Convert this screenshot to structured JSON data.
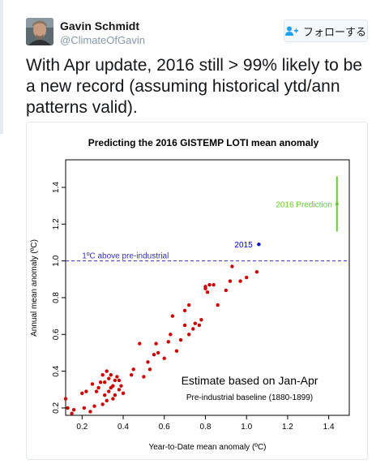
{
  "tweet": {
    "author_name": "Gavin Schmidt",
    "author_handle": "@ClimateOfGavin",
    "follow_label": "フォローする",
    "text": "With Apr update, 2016 still > 99% likely to be a new record (assuming historical ytd/ann patterns valid)."
  },
  "icons": {
    "avatar": "user-photo",
    "follow": "follow-user-icon"
  },
  "colors": {
    "points": "#cc0000",
    "reference_line": "#3333bb",
    "prediction": "#66cc33",
    "point_2015": "#0000cc"
  },
  "chart_data": {
    "type": "scatter",
    "title": "Predicting the 2016 GISTEMP LOTI mean anomaly",
    "xlabel": "Year-to-Date mean anomaly (ºC)",
    "ylabel": "Annual mean anomaly (ºC)",
    "xlim": [
      0.12,
      1.5
    ],
    "ylim": [
      0.16,
      1.55
    ],
    "xticks": [
      "0.2",
      "0.4",
      "0.6",
      "0.8",
      "1.0",
      "1.2",
      "1.4"
    ],
    "yticks": [
      "0.2",
      "0.4",
      "0.6",
      "0.8",
      "1.0",
      "1.2",
      "1.4"
    ],
    "reference_line": {
      "y": 1.0,
      "label": "1ºC above pre-industrial"
    },
    "annotations": {
      "estimate": "Estimate based on Jan-Apr",
      "baseline": "Pre-industrial baseline (1880-1899)",
      "label_2015": "2015",
      "label_2016": "2016 Prediction"
    },
    "series": [
      {
        "x": [
          0.12,
          0.13,
          0.15,
          0.16,
          0.2,
          0.21,
          0.22,
          0.24,
          0.25,
          0.26,
          0.27,
          0.28,
          0.29,
          0.3,
          0.3,
          0.31,
          0.31,
          0.32,
          0.32,
          0.33,
          0.33,
          0.34,
          0.34,
          0.35,
          0.35,
          0.36,
          0.36,
          0.37,
          0.38,
          0.38,
          0.39,
          0.4,
          0.44,
          0.45,
          0.48,
          0.5,
          0.52,
          0.53,
          0.55,
          0.56,
          0.57,
          0.6,
          0.62,
          0.63,
          0.64,
          0.66,
          0.68,
          0.7,
          0.7,
          0.72,
          0.72,
          0.74,
          0.75,
          0.77,
          0.78,
          0.8,
          0.8,
          0.81,
          0.82,
          0.84,
          0.86,
          0.9,
          0.92,
          0.93,
          0.97,
          1.0,
          1.05
        ],
        "y": [
          0.25,
          0.2,
          0.17,
          0.19,
          0.28,
          0.2,
          0.29,
          0.18,
          0.33,
          0.21,
          0.29,
          0.31,
          0.34,
          0.22,
          0.38,
          0.27,
          0.34,
          0.24,
          0.4,
          0.29,
          0.36,
          0.31,
          0.38,
          0.25,
          0.32,
          0.27,
          0.35,
          0.37,
          0.3,
          0.35,
          0.32,
          0.28,
          0.38,
          0.41,
          0.55,
          0.37,
          0.45,
          0.41,
          0.49,
          0.55,
          0.5,
          0.47,
          0.56,
          0.6,
          0.7,
          0.51,
          0.57,
          0.65,
          0.73,
          0.6,
          0.76,
          0.63,
          0.66,
          0.65,
          0.68,
          0.86,
          0.85,
          0.83,
          0.87,
          0.87,
          0.76,
          0.84,
          0.89,
          0.97,
          0.89,
          0.91,
          0.94
        ]
      },
      {
        "name": "2015",
        "x": [
          1.06
        ],
        "y": [
          1.09
        ]
      },
      {
        "name": "2016 Prediction",
        "x": [
          1.44
        ],
        "y": [
          1.31
        ],
        "range": [
          1.16,
          1.46
        ]
      }
    ]
  }
}
